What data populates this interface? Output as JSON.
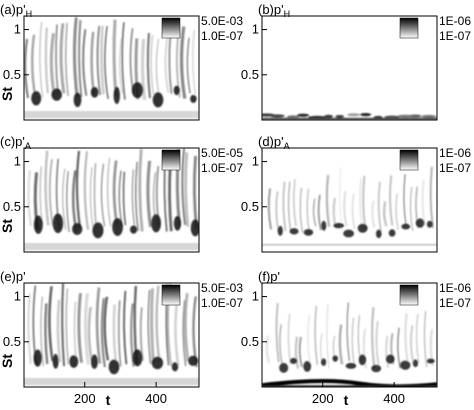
{
  "chart_data": [
    {
      "type": "heatmap",
      "panel_label": "(a)",
      "variable_base": "p'",
      "variable_sub": "H",
      "legend": {
        "max_label": "5.0E-03",
        "min_label": "1.0E-07"
      },
      "ylabel": "St",
      "yticks": [
        "0.5",
        "1"
      ],
      "xticks": [],
      "xlabel": "",
      "ylim": [
        0,
        1.15
      ],
      "xlim": [
        30,
        520
      ],
      "band": "broad"
    },
    {
      "type": "heatmap",
      "panel_label": "(b)",
      "variable_base": "p'",
      "variable_sub": "H",
      "legend": {
        "max_label": "1E-06",
        "min_label": "1E-07"
      },
      "ylabel": "",
      "yticks": [
        "0.5",
        "1"
      ],
      "xticks": [],
      "xlabel": "",
      "ylim": [
        0,
        1.15
      ],
      "xlim": [
        30,
        520
      ],
      "band": "low"
    },
    {
      "type": "heatmap",
      "panel_label": "(c)",
      "variable_base": "p'",
      "variable_sub": "A",
      "legend": {
        "max_label": "5.0E-05",
        "min_label": "1.0E-07"
      },
      "ylabel": "St",
      "yticks": [
        "0.5",
        "1"
      ],
      "xticks": [],
      "xlabel": "",
      "ylim": [
        0,
        1.15
      ],
      "xlim": [
        30,
        520
      ],
      "band": "broad"
    },
    {
      "type": "heatmap",
      "panel_label": "(d)",
      "variable_base": "p'",
      "variable_sub": "A",
      "legend": {
        "max_label": "1E-06",
        "min_label": "1E-07"
      },
      "ylabel": "",
      "yticks": [
        "0.5",
        "1"
      ],
      "xticks": [],
      "xlabel": "",
      "ylim": [
        0,
        1.15
      ],
      "xlim": [
        30,
        520
      ],
      "band": "mid"
    },
    {
      "type": "heatmap",
      "panel_label": "(e)",
      "variable_base": "p'",
      "variable_sub": "",
      "legend": {
        "max_label": "5.0E-03",
        "min_label": "1.0E-07"
      },
      "ylabel": "St",
      "yticks": [
        "0.5",
        "1"
      ],
      "xticks": [
        "200",
        "400"
      ],
      "xlabel": "t",
      "ylim": [
        0,
        1.15
      ],
      "xlim": [
        30,
        520
      ],
      "band": "broad"
    },
    {
      "type": "heatmap",
      "panel_label": "(f)",
      "variable_base": "p'",
      "variable_sub": "",
      "legend": {
        "max_label": "1E-06",
        "min_label": "1E-07"
      },
      "ylabel": "",
      "yticks": [
        "0.5",
        "1"
      ],
      "xticks": [
        "200",
        "400"
      ],
      "xlabel": "t",
      "ylim": [
        0,
        1.15
      ],
      "xlim": [
        30,
        520
      ],
      "band": "mid-low"
    }
  ]
}
